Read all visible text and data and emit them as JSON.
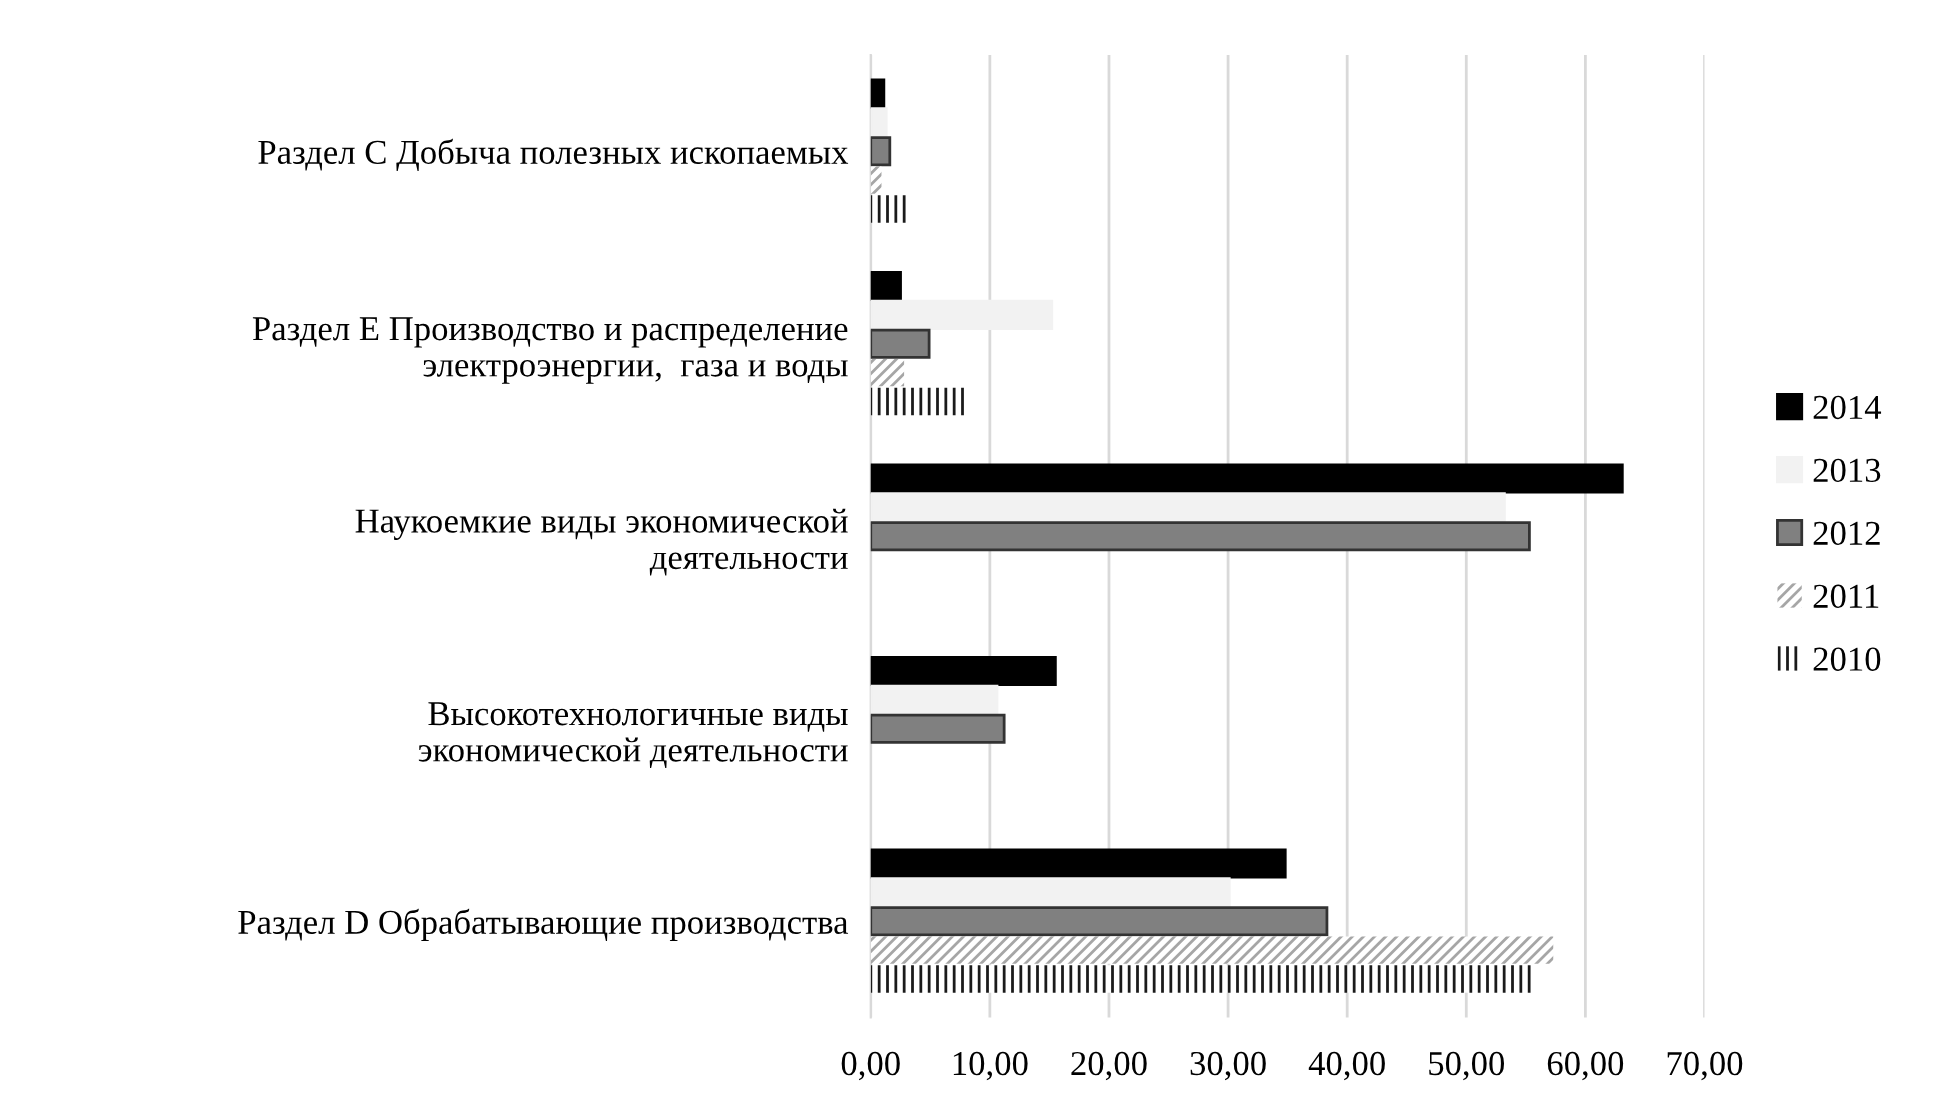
{
  "chart_data": {
    "type": "bar",
    "orientation": "horizontal",
    "categories": [
      "Раздел С Добыча полезных ископаемых",
      "Раздел Е Производство и распределение\nэлектроэнергии,  газа и воды",
      "Наукоемкие виды экономической\nдеятельности",
      "Высокотехнологичные виды\nэкономической деятельности",
      "Раздел D Обрабатывающие производства"
    ],
    "series": [
      {
        "name": "2014",
        "color": "#000000",
        "values": [
          1.1,
          2.5,
          63.1,
          15.5,
          34.8
        ]
      },
      {
        "name": "2013",
        "color": "#f2f2f2",
        "values": [
          1.3,
          15.2,
          53.2,
          10.6,
          30.1
        ]
      },
      {
        "name": "2012",
        "color": "#808080",
        "values": [
          1.6,
          4.9,
          55.3,
          11.2,
          38.3
        ]
      },
      {
        "name": "2011",
        "color": "#a6a6a6",
        "values": [
          0.9,
          2.8,
          null,
          null,
          57.3
        ]
      },
      {
        "name": "2010",
        "color": "#1a1a1a",
        "values": [
          3.3,
          7.9,
          null,
          null,
          55.7
        ]
      }
    ],
    "xlim": [
      0,
      70
    ],
    "xticks": [
      {
        "value": 0,
        "label": "0,00"
      },
      {
        "value": 10,
        "label": "10,00"
      },
      {
        "value": 20,
        "label": "20,00"
      },
      {
        "value": 30,
        "label": "30,00"
      },
      {
        "value": 40,
        "label": "40,00"
      },
      {
        "value": 50,
        "label": "50,00"
      },
      {
        "value": 60,
        "label": "60,00"
      },
      {
        "value": 70,
        "label": "70,00"
      }
    ],
    "grid": "x",
    "legend": "right"
  }
}
